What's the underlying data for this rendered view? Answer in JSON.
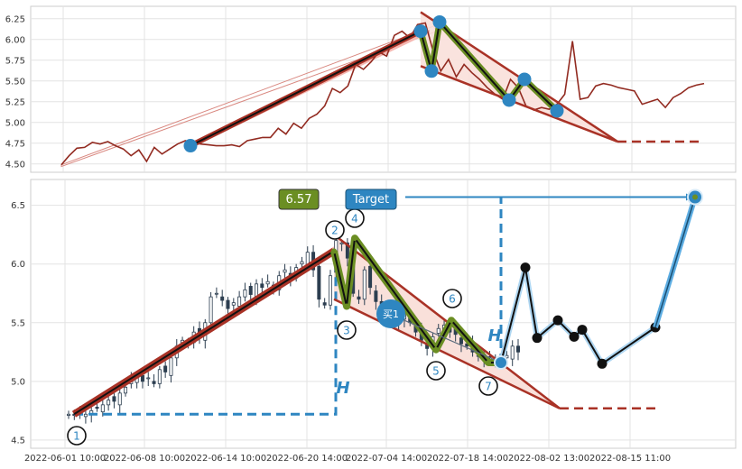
{
  "chart_data": [
    {
      "type": "line",
      "panel": "top",
      "ylim": [
        4.4,
        6.4
      ],
      "yticks": [
        4.5,
        4.75,
        5.0,
        5.25,
        5.5,
        5.75,
        6.0,
        6.25
      ],
      "ytick_labels": [
        "4.50",
        "4.75",
        "5.00",
        "5.25",
        "5.50",
        "5.75",
        "6.00",
        "6.25"
      ],
      "grid": true,
      "series": [
        {
          "values": [
            4.49,
            4.6,
            4.69,
            4.7,
            4.76,
            4.74,
            4.77,
            4.72,
            4.68,
            4.6,
            4.67,
            4.53,
            4.7,
            4.62,
            4.68,
            4.74,
            4.78,
            4.76,
            4.74,
            4.73,
            4.72,
            4.72,
            4.73,
            4.71,
            4.78,
            4.8,
            4.82,
            4.82,
            4.93,
            4.86,
            4.99,
            4.93,
            5.05,
            5.1,
            5.2,
            5.41,
            5.36,
            5.44,
            5.7,
            5.64,
            5.73,
            5.85,
            5.8,
            6.05,
            6.1,
            6.02,
            6.18,
            6.2,
            5.86,
            5.62,
            5.76,
            5.55,
            5.7,
            5.6,
            5.52,
            5.42,
            5.34,
            5.28,
            5.52,
            5.42,
            5.2,
            5.15,
            5.18,
            5.16,
            5.22,
            5.34,
            5.98,
            5.28,
            5.3,
            5.44,
            5.47,
            5.45,
            5.42,
            5.4,
            5.38,
            5.22,
            5.25,
            5.28,
            5.18,
            5.3,
            5.35,
            5.42,
            5.45,
            5.47
          ]
        }
      ],
      "pattern_points": [
        {
          "label": "1",
          "y": 4.72
        },
        {
          "label": "2",
          "y": 6.1
        },
        {
          "label": "4",
          "y": 6.21
        },
        {
          "label": "3",
          "y": 5.62
        },
        {
          "label": "5",
          "y": 5.27
        },
        {
          "label": "6",
          "y": 5.52
        },
        {
          "label": "7",
          "y": 5.14
        }
      ],
      "target_y": 4.77
    },
    {
      "type": "candlestick",
      "panel": "bottom",
      "ylim": [
        4.43,
        6.72
      ],
      "yticks": [
        4.5,
        5.0,
        5.5,
        6.0,
        6.5
      ],
      "ytick_labels": [
        "4.5",
        "5.0",
        "5.5",
        "6.0",
        "6.5"
      ],
      "xtick_labels": [
        "2022-06-01 10:00",
        "2022-06-08 10:00",
        "2022-06-14 10:00",
        "2022-06-20 14:00",
        "2022-07-04 14:00",
        "2022-07-18 14:00",
        "2022-08-02 13:00",
        "2022-08-15 11:00"
      ],
      "grid": true,
      "closes": [
        4.72,
        4.71,
        4.73,
        4.72,
        4.75,
        4.77,
        4.8,
        4.84,
        4.83,
        4.9,
        4.95,
        5.02,
        5.05,
        5.0,
        5.03,
        4.98,
        5.1,
        5.08,
        5.2,
        5.3,
        5.35,
        5.33,
        5.42,
        5.38,
        5.5,
        5.72,
        5.75,
        5.69,
        5.62,
        5.67,
        5.72,
        5.78,
        5.74,
        5.83,
        5.8,
        5.85,
        5.78,
        5.9,
        5.95,
        5.88,
        5.97,
        6.02,
        6.1,
        5.95,
        5.7,
        5.65,
        5.9,
        6.2,
        6.18,
        6.05,
        5.75,
        5.7,
        5.95,
        5.8,
        5.68,
        5.6,
        5.65,
        5.55,
        5.5,
        5.58,
        5.5,
        5.42,
        5.35,
        5.28,
        5.38,
        5.45,
        5.48,
        5.42,
        5.4,
        5.32,
        5.3,
        5.25,
        5.22,
        5.18,
        5.2,
        5.15,
        5.17,
        5.22,
        5.3,
        5.25
      ],
      "pattern_points": [
        {
          "label": "1",
          "y": 4.72
        },
        {
          "label": "2",
          "y": 6.11
        },
        {
          "label": "3",
          "y": 5.64
        },
        {
          "label": "4",
          "y": 6.22
        },
        {
          "label": "5",
          "y": 5.27
        },
        {
          "label": "6",
          "y": 5.52
        },
        {
          "label": "7",
          "y": 5.16
        }
      ],
      "projection": [
        5.16,
        5.97,
        5.37,
        5.52,
        5.38,
        5.44,
        5.15,
        5.46,
        6.57
      ],
      "annotations": {
        "value_box": "6.57",
        "target_box": "Target",
        "buy_marker": "买1",
        "h_label": "H"
      },
      "target_y": 4.77,
      "target_price": 6.57
    }
  ],
  "colors": {
    "accent_red": "#a93226",
    "accent_blue": "#2e86c1",
    "price_line": "#922b21",
    "olive": "#6b8e23",
    "triangle_fill": "#f9e0da"
  }
}
